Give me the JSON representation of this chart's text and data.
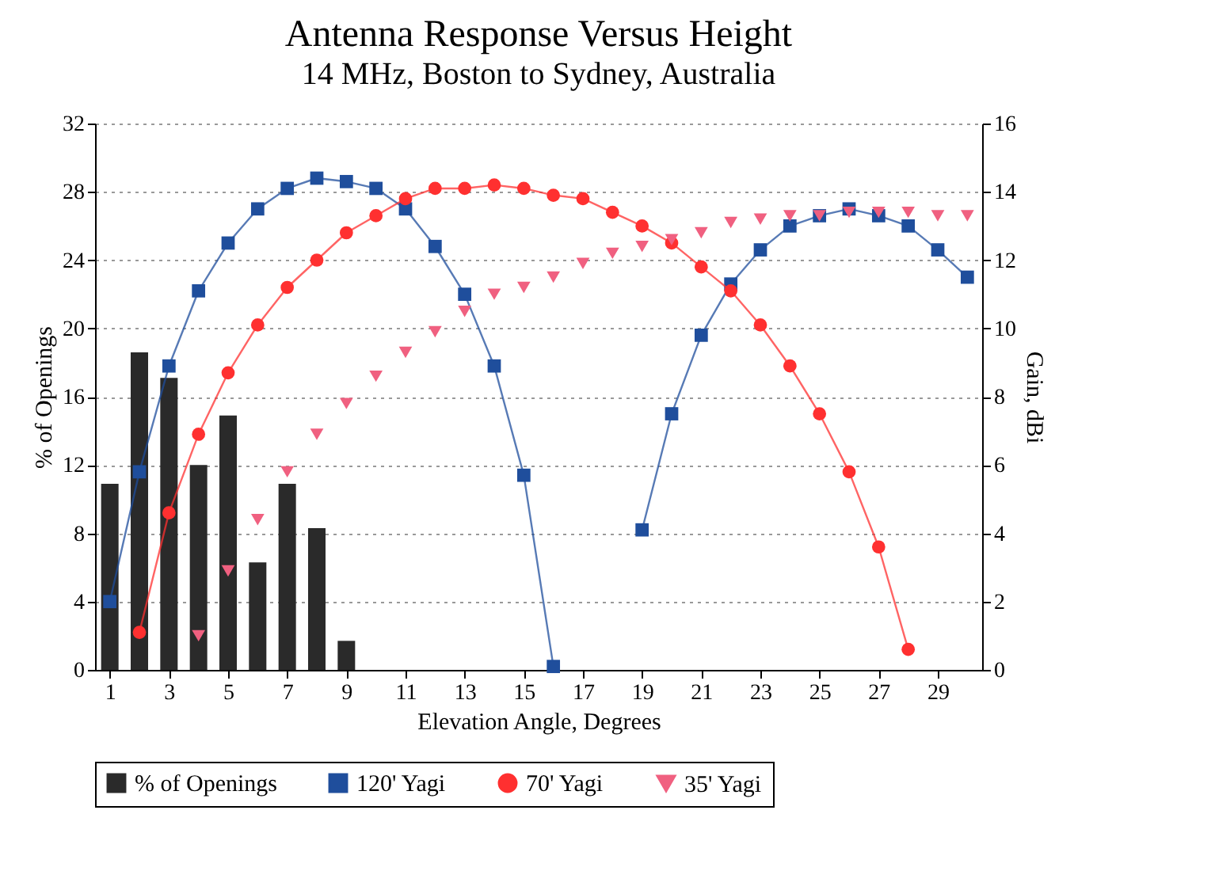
{
  "chart_data": {
    "type": "line",
    "title": "Antenna Response Versus Height",
    "subtitle": "14 MHz, Boston to Sydney, Australia",
    "xlabel": "Elevation Angle, Degrees",
    "ylabel": "% of Openings",
    "y2label": "Gain, dBi",
    "x": [
      1,
      2,
      3,
      4,
      5,
      6,
      7,
      8,
      9,
      10,
      11,
      12,
      13,
      14,
      15,
      16,
      17,
      18,
      19,
      20,
      21,
      22,
      23,
      24,
      25,
      26,
      27,
      28,
      29,
      30
    ],
    "xlim": [
      0.5,
      30.5
    ],
    "xticks": [
      1,
      3,
      5,
      7,
      9,
      11,
      13,
      15,
      17,
      19,
      21,
      23,
      25,
      27,
      29
    ],
    "ylim": [
      0,
      32
    ],
    "yticks": [
      0,
      4,
      8,
      12,
      16,
      20,
      24,
      28,
      32
    ],
    "y2lim": [
      0,
      16
    ],
    "y2ticks": [
      0,
      2,
      4,
      6,
      8,
      10,
      12,
      14,
      16
    ],
    "grid": "y",
    "legend": "bottom",
    "series": [
      {
        "name": "% of Openings",
        "type": "bar",
        "color": "#2a2a2a",
        "x": [
          1,
          2,
          3,
          4,
          5,
          6,
          7,
          8,
          9
        ],
        "values": [
          10.9,
          18.6,
          17.1,
          12.0,
          14.9,
          6.3,
          10.9,
          8.3,
          1.7
        ]
      },
      {
        "name": "120' Yagi",
        "axis": "y2",
        "color": "#1f4e9c",
        "marker": "square",
        "values": [
          2.0,
          5.8,
          8.9,
          11.1,
          12.5,
          13.5,
          14.1,
          14.4,
          14.3,
          14.1,
          13.5,
          12.4,
          11.0,
          8.9,
          5.7,
          0.1,
          null,
          null,
          4.1,
          7.5,
          9.8,
          11.3,
          12.3,
          13.0,
          13.3,
          13.5,
          13.3,
          13.0,
          12.3,
          11.5
        ]
      },
      {
        "name": "70' Yagi",
        "axis": "y2",
        "color": "#ff3030",
        "marker": "circle",
        "x": [
          2,
          3,
          4,
          5,
          6,
          7,
          8,
          9,
          10,
          11,
          12,
          13,
          14,
          15,
          16,
          17,
          18,
          19,
          20,
          21,
          22,
          23,
          24,
          25,
          26,
          27,
          28
        ],
        "values": [
          1.1,
          4.6,
          6.9,
          8.7,
          10.1,
          11.2,
          12.0,
          12.8,
          13.3,
          13.8,
          14.1,
          14.1,
          14.2,
          14.1,
          13.9,
          13.8,
          13.4,
          13.0,
          12.5,
          11.8,
          11.1,
          10.1,
          8.9,
          7.5,
          5.8,
          3.6,
          0.6
        ]
      },
      {
        "name": "35' Yagi",
        "type": "scatter",
        "axis": "y2",
        "color": "#f06080",
        "marker": "triangle",
        "x": [
          4,
          5,
          6,
          7,
          8,
          9,
          10,
          11,
          12,
          13,
          14,
          15,
          16,
          17,
          18,
          19,
          20,
          21,
          22,
          23,
          24,
          25,
          26,
          27,
          28,
          29,
          30
        ],
        "values": [
          1.0,
          2.9,
          4.4,
          5.8,
          6.9,
          7.8,
          8.6,
          9.3,
          9.9,
          10.5,
          11.0,
          11.2,
          11.5,
          11.9,
          12.2,
          12.4,
          12.6,
          12.8,
          13.1,
          13.2,
          13.3,
          13.3,
          13.4,
          13.4,
          13.4,
          13.3,
          13.3
        ]
      }
    ]
  }
}
